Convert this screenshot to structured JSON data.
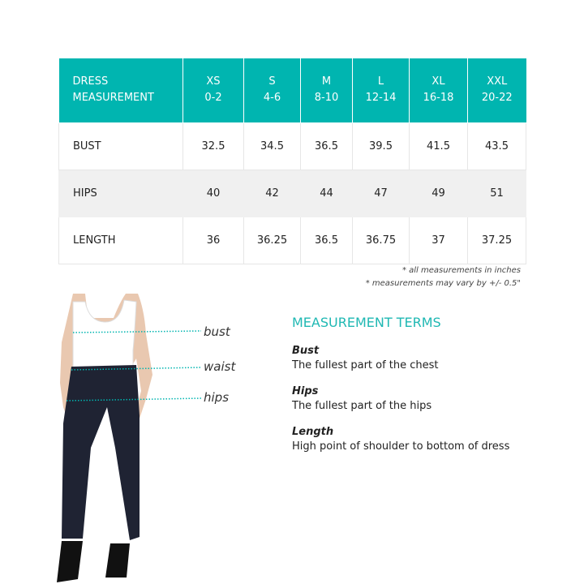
{
  "table": {
    "header": {
      "label_line1": "DRESS",
      "label_line2": "MEASUREMENT",
      "sizes": [
        {
          "size": "XS",
          "range": "0-2"
        },
        {
          "size": "S",
          "range": "4-6"
        },
        {
          "size": "M",
          "range": "8-10"
        },
        {
          "size": "L",
          "range": "12-14"
        },
        {
          "size": "XL",
          "range": "16-18"
        },
        {
          "size": "XXL",
          "range": "20-22"
        }
      ]
    },
    "rows": [
      {
        "label": "BUST",
        "values": [
          "32.5",
          "34.5",
          "36.5",
          "39.5",
          "41.5",
          "43.5"
        ]
      },
      {
        "label": "HIPS",
        "values": [
          "40",
          "42",
          "44",
          "47",
          "49",
          "51"
        ]
      },
      {
        "label": "LENGTH",
        "values": [
          "36",
          "36.25",
          "36.5",
          "36.75",
          "37",
          "37.25"
        ]
      }
    ]
  },
  "notes": [
    "* all measurements in inches",
    "* measurements may vary by +/- 0.5\""
  ],
  "figure": {
    "labels": {
      "bust": "bust",
      "waist": "waist",
      "hips": "hips"
    },
    "accent": "#00b5b0"
  },
  "terms": {
    "title": "MEASUREMENT TERMS",
    "items": [
      {
        "name": "Bust",
        "desc": "The fullest part of the chest"
      },
      {
        "name": "Hips",
        "desc": "The fullest part of the hips"
      },
      {
        "name": "Length",
        "desc": "High point of shoulder to bottom of dress"
      }
    ]
  }
}
